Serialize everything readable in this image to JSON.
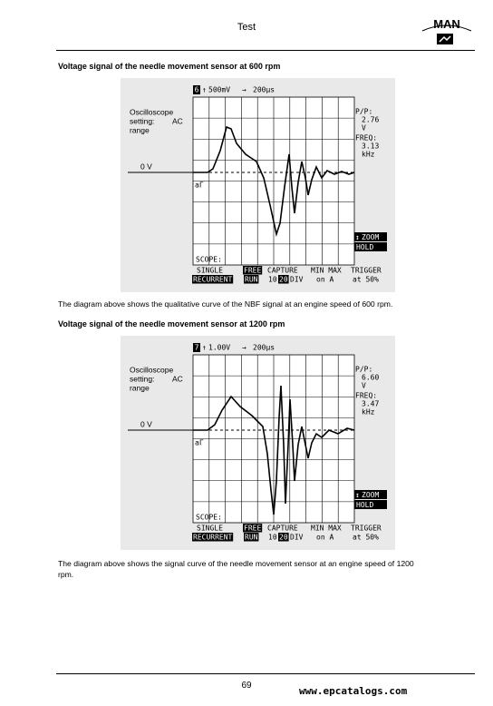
{
  "header": {
    "title": "Test",
    "logo": "MAN"
  },
  "sections": [
    {
      "heading": "Voltage signal of the needle movement sensor at 600 rpm",
      "scope": {
        "channel": "6",
        "volts_per_div": "500mV",
        "time_per_div": "200µs",
        "setting": [
          "Oscilloscope",
          "setting:",
          "AC",
          "range"
        ],
        "zero_label": "0 V",
        "trigger_marker": "aΓ",
        "readout": [
          "P/P:",
          "2.76",
          "V",
          "FREQ:",
          "3.13",
          "kHz"
        ],
        "buttons": [
          "ZOOM",
          "HOLD"
        ],
        "mode_label": "SCOPE:",
        "menu": [
          [
            "SINGLE",
            "FREE",
            "CAPTURE",
            "MIN MAX",
            "TRIGGER"
          ],
          [
            "RECURRENT",
            "RUN",
            "10",
            "20",
            "DIV",
            "on A",
            "at 50%"
          ]
        ]
      },
      "caption": "The diagram above shows the qualitative curve of the NBF signal at an engine speed of 600 rpm."
    },
    {
      "heading": "Voltage signal of the needle movement sensor at 1200 rpm",
      "scope": {
        "channel": "7",
        "volts_per_div": "1.00V",
        "time_per_div": "200µs",
        "setting": [
          "Oscilloscope",
          "setting:",
          "AC",
          "range"
        ],
        "zero_label": "0 V",
        "trigger_marker": "aΓ",
        "readout": [
          "P/P:",
          "6.60",
          "V",
          "FREQ:",
          "3.47",
          "kHz"
        ],
        "buttons": [
          "ZOOM",
          "HOLD"
        ],
        "mode_label": "SCOPE:",
        "menu": [
          [
            "SINGLE",
            "FREE",
            "CAPTURE",
            "MIN MAX",
            "TRIGGER"
          ],
          [
            "RECURRENT",
            "RUN",
            "10",
            "20",
            "DIV",
            "on A",
            "at 50%"
          ]
        ]
      },
      "caption": "The diagram above shows the signal curve of the needle movement sensor at an engine speed of 1200 rpm."
    }
  ],
  "footer": {
    "page": "69",
    "watermark": "www.epcatalogs.com"
  }
}
